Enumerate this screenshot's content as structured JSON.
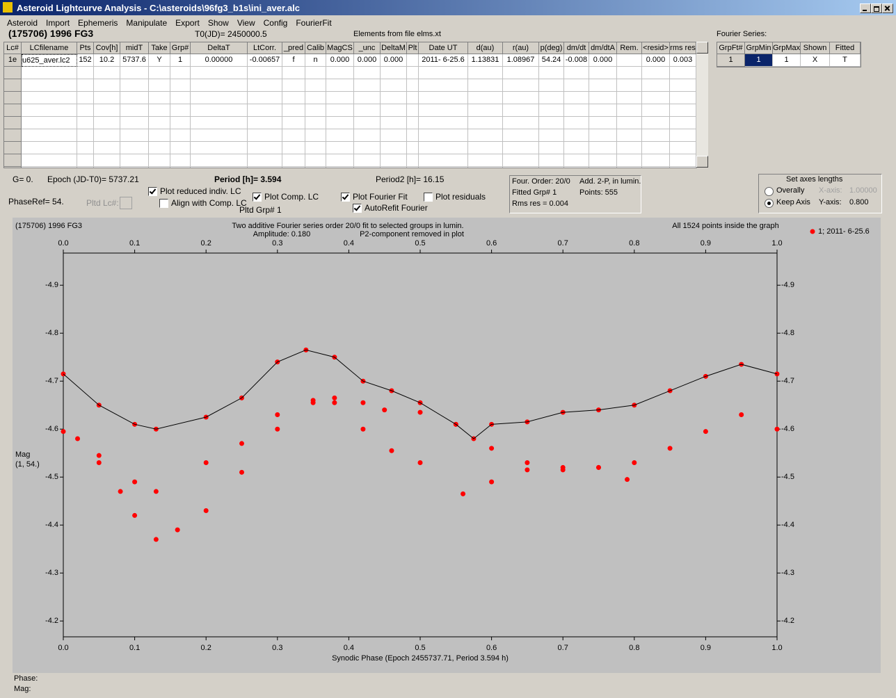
{
  "window": {
    "title": "Asteroid Lightcurve Analysis - C:\\asteroids\\96fg3_b1s\\ini_aver.alc"
  },
  "menu": [
    "Asteroid",
    "Import",
    "Ephemeris",
    "Manipulate",
    "Export",
    "Show",
    "View",
    "Config",
    "FourierFit"
  ],
  "header": {
    "object": "(175706) 1996 FG3",
    "t0": "T0(JD)= 2450000.5",
    "elements": "Elements from file elms.xt",
    "fourier_label": "Fourier Series:"
  },
  "lc_table": {
    "columns": [
      "Lc#",
      "LCfilename",
      "Pts",
      "Cov[h]",
      "midT",
      "Take",
      "Grp#",
      "DeltaT",
      "LtCorr.",
      "_pred",
      "Calib",
      "MagCS",
      "_unc",
      "DeltaM",
      "Plt",
      "Date UT",
      "d(au)",
      "r(au)",
      "p(deg)",
      "dm/dt",
      "dm/dtA",
      "Rem.",
      "<resid>",
      "rms res"
    ],
    "rows": [
      [
        "1e",
        "u625_aver.lc2",
        "152",
        "10.2",
        "5737.6",
        "Y",
        "1",
        "0.00000",
        "-0.00657",
        "f",
        "n",
        "0.000",
        "0.000",
        "0.000",
        null,
        "2011- 6-25.6",
        "1.13831",
        "1.08967",
        "54.24",
        "-0.008",
        "0.000",
        null,
        "0.000",
        "0.003"
      ]
    ]
  },
  "fourier_table": {
    "columns": [
      "GrpFt#",
      "GrpMin",
      "GrpMax",
      "Shown",
      "Fitted"
    ],
    "rows": [
      [
        "1",
        "1",
        "1",
        "X",
        "T"
      ]
    ]
  },
  "info": {
    "g": "G= 0.",
    "epoch": "Epoch (JD-T0)= 5737.21",
    "period": "Period [h]= 3.594",
    "period2": "Period2 [h]= 16.15",
    "phaseref": "PhaseRef= 54.",
    "pltd_lc": "Pltd Lc#:",
    "pltd_grp": "Pltd Grp#  1"
  },
  "checkboxes": [
    {
      "label": "Plot reduced indiv. LC",
      "checked": true
    },
    {
      "label": "Align with Comp. LC",
      "checked": false
    },
    {
      "label": "Plot Comp. LC",
      "checked": true
    },
    {
      "label": "Plot Fourier Fit",
      "checked": true
    },
    {
      "label": "AutoRefit Fourier",
      "checked": true
    },
    {
      "label": "Plot residuals",
      "checked": false
    }
  ],
  "fit_box": [
    "Four. Order: 20/0",
    "Add. 2-P, in lumin.",
    "Fitted Grp# 1",
    "Points: 555",
    "Rms res    = 0.004"
  ],
  "axes_box": {
    "title": "Set axes lengths",
    "options": [
      {
        "label": "Overally",
        "selected": false
      },
      {
        "label": "Keep Axis",
        "selected": true
      }
    ],
    "x_axis": "X-axis:",
    "x_value": "1.00000",
    "y_axis": "Y-axis:",
    "y_value": "0.800"
  },
  "chart_data": {
    "type": "scatter",
    "title": "Two additive Fourier series order 20/0 fit to selected groups in lumin.",
    "object": "(175706) 1996 FG3",
    "amplitude": "Amplitude: 0.180",
    "p2_note": "P2-component removed in plot",
    "points_note": "All 1524 points inside the graph",
    "xlabel": "Synodic Phase (Epoch 2455737.71, Period 3.594 h)",
    "ylabel": [
      "Mag",
      "(1, 54.)"
    ],
    "xlim": [
      0,
      1
    ],
    "ylim": [
      -4.167,
      -4.967
    ],
    "xticks": [
      {
        "value": 0,
        "label": "0.0"
      },
      0.1,
      0.2,
      0.3,
      0.4,
      0.5,
      0.6,
      0.7,
      0.8,
      0.9,
      {
        "value": 1,
        "label": "1.0"
      }
    ],
    "yticks": [
      -4.9,
      -4.8,
      -4.7,
      -4.6,
      -4.5,
      -4.4,
      -4.3,
      -4.2
    ],
    "legend": "top-right",
    "series": [
      {
        "name": "1; 2011- 6-25.6",
        "color": "#ff0000",
        "mode": "markers",
        "x": [
          0,
          0.05,
          0.1,
          0.13,
          0.2,
          0.25,
          0.3,
          0.34,
          0.38,
          0.42,
          0.46,
          0.5,
          0.55,
          0.575,
          0.6,
          0.65,
          0.7,
          0.75,
          0.8,
          0.85,
          0.9,
          0.95,
          1
        ],
        "values": [
          -4.715,
          -4.65,
          -4.61,
          -4.6,
          -4.625,
          -4.665,
          -4.74,
          -4.765,
          -4.75,
          -4.7,
          -4.68,
          -4.655,
          -4.61,
          -4.58,
          -4.61,
          -4.615,
          -4.635,
          -4.64,
          -4.65,
          -4.68,
          -4.71,
          -4.735,
          -4.715
        ]
      },
      {
        "color": "#ff0000",
        "mode": "markers",
        "x": [
          0,
          0.05,
          0.1,
          0.13,
          0.2,
          0.25,
          0.3,
          0.35,
          0.38,
          0.42,
          0.45,
          0.5,
          0.55,
          0.6,
          0.65,
          0.7,
          0.75,
          0.8,
          0.85,
          0.9,
          0.95,
          1
        ],
        "values": [
          -4.595,
          -4.545,
          -4.49,
          -4.47,
          -4.53,
          -4.57,
          -4.63,
          -4.66,
          -4.665,
          -4.655,
          -4.64,
          -4.635,
          -4.61,
          -4.56,
          -4.53,
          -4.515,
          -4.52,
          -4.53,
          -4.56,
          -4.595,
          -4.63,
          -4.6
        ]
      },
      {
        "color": "#ff0000",
        "mode": "markers",
        "x": [
          0.02,
          0.05,
          0.08,
          0.1,
          0.13,
          0.16,
          0.2,
          0.25,
          0.3,
          0.35,
          0.38,
          0.42,
          0.46,
          0.5,
          0.56,
          0.6,
          0.65,
          0.7,
          0.75,
          0.79
        ],
        "values": [
          -4.58,
          -4.53,
          -4.47,
          -4.42,
          -4.37,
          -4.39,
          -4.43,
          -4.51,
          -4.6,
          -4.655,
          -4.655,
          -4.6,
          -4.555,
          -4.53,
          -4.465,
          -4.49,
          -4.515,
          -4.52,
          -4.52,
          -4.495
        ]
      },
      {
        "color": "#000000",
        "mode": "line",
        "x": [
          0,
          0.05,
          0.1,
          0.13,
          0.2,
          0.25,
          0.3,
          0.34,
          0.38,
          0.42,
          0.46,
          0.5,
          0.55,
          0.575,
          0.6,
          0.65,
          0.7,
          0.75,
          0.8,
          0.85,
          0.9,
          0.95,
          1
        ],
        "values": [
          -4.715,
          -4.65,
          -4.61,
          -4.6,
          -4.625,
          -4.665,
          -4.74,
          -4.765,
          -4.75,
          -4.7,
          -4.68,
          -4.655,
          -4.61,
          -4.58,
          -4.61,
          -4.615,
          -4.635,
          -4.64,
          -4.65,
          -4.68,
          -4.71,
          -4.735,
          -4.715
        ]
      }
    ]
  },
  "status": [
    "Phase:",
    "Mag:"
  ]
}
